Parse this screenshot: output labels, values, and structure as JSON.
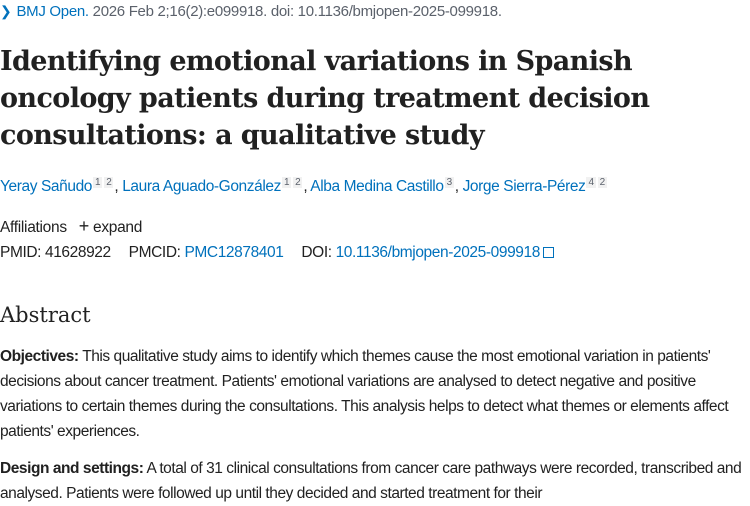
{
  "citation": {
    "journal": "BMJ Open.",
    "details": "2026 Feb 2;16(2):e099918. doi: 10.1136/bmjopen-2025-099918."
  },
  "title": "Identifying emotional variations in Spanish oncology patients during treatment decision consultations: a qualitative study",
  "authors": [
    {
      "name": "Yeray Sañudo",
      "affs": [
        "1",
        "2"
      ]
    },
    {
      "name": "Laura Aguado-González",
      "affs": [
        "1",
        "2"
      ]
    },
    {
      "name": "Alba Medina Castillo",
      "affs": [
        "3"
      ]
    },
    {
      "name": "Jorge Sierra-Pérez",
      "affs": [
        "4",
        "2"
      ]
    }
  ],
  "affiliations": {
    "label": "Affiliations",
    "expand": "expand",
    "expand_icon": "plus-icon"
  },
  "ids": {
    "pmid_label": "PMID:",
    "pmid": "41628922",
    "pmcid_label": "PMCID:",
    "pmcid": "PMC12878401",
    "doi_label": "DOI:",
    "doi": "10.1136/bmjopen-2025-099918"
  },
  "abstract": {
    "heading": "Abstract",
    "sections": [
      {
        "label": "Objectives:",
        "text": " This qualitative study aims to identify which themes cause the most emotional variation in patients' decisions about cancer treatment. Patients' emotional variations are analysed to detect negative and positive variations to certain themes during the consultations. This analysis helps to detect what themes or elements affect patients' experiences."
      },
      {
        "label": "Design and settings:",
        "text": " A total of 31 clinical consultations from cancer care pathways were recorded, transcribed and analysed. Patients were followed up until they decided and started treatment for their"
      }
    ]
  }
}
